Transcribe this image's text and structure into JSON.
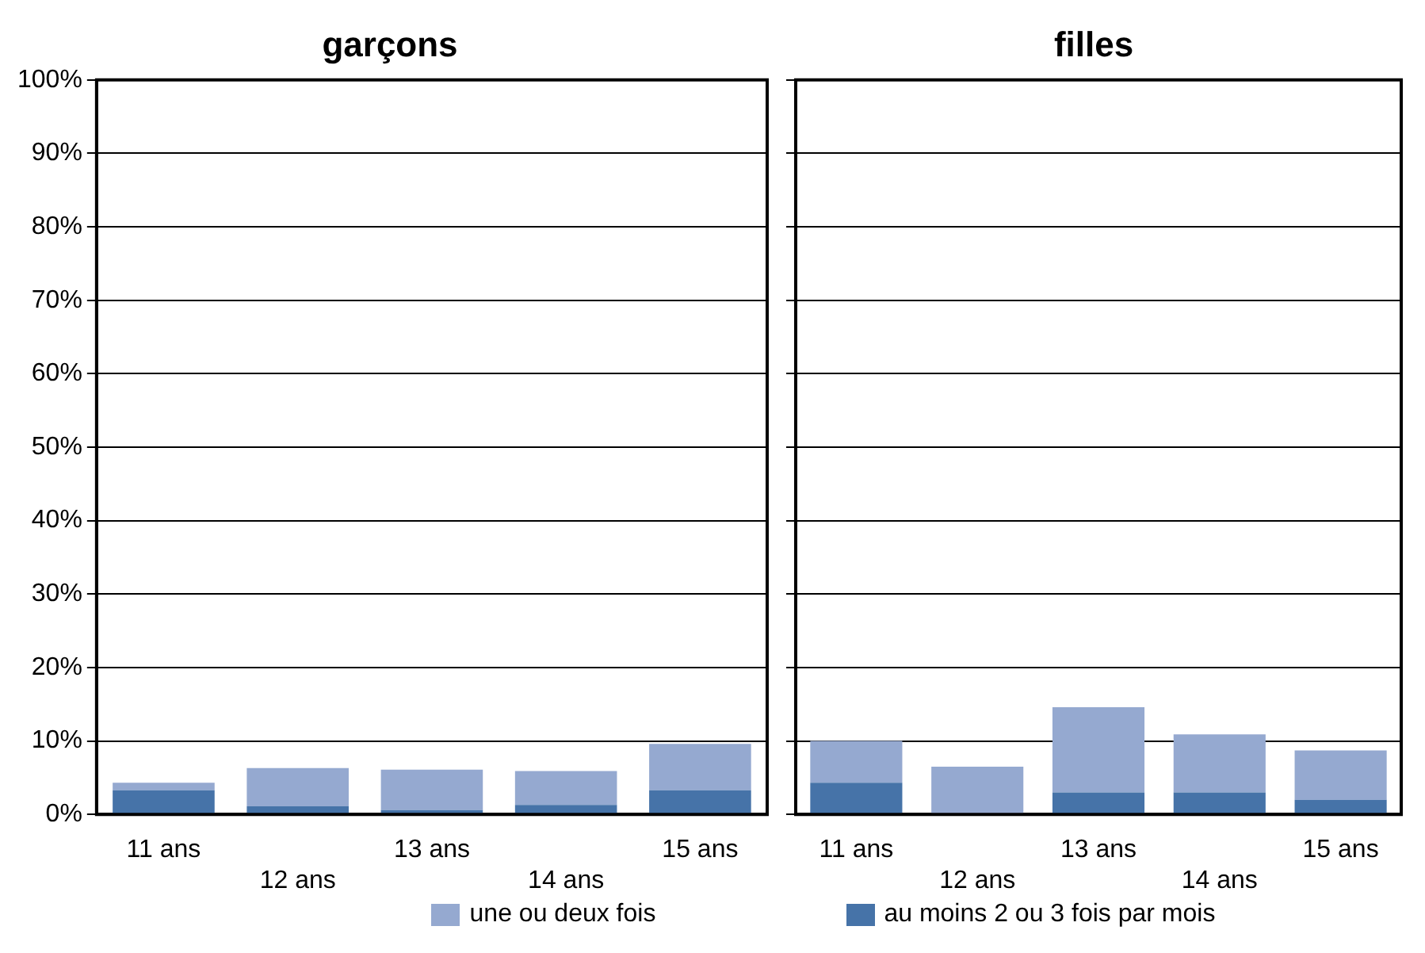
{
  "chart_data": [
    {
      "type": "bar",
      "title": "garçons",
      "categories": [
        "11 ans",
        "12 ans",
        "13 ans",
        "14 ans",
        "15 ans"
      ],
      "stacked": true,
      "series": [
        {
          "name": "au moins 2 ou 3 fois par mois",
          "color": "#4673a8",
          "values": [
            3.3,
            1.1,
            0.6,
            1.3,
            3.3
          ]
        },
        {
          "name": "une ou deux fois",
          "color": "#95a9d0",
          "values": [
            1.0,
            5.2,
            5.5,
            4.6,
            6.3
          ]
        }
      ],
      "ylim": [
        0,
        100
      ],
      "yticks": [
        {
          "value": 0,
          "label": "0%"
        },
        {
          "value": 10,
          "label": "10%"
        },
        {
          "value": 20,
          "label": "20%"
        },
        {
          "value": 30,
          "label": "30%"
        },
        {
          "value": 40,
          "label": "40%"
        },
        {
          "value": 50,
          "label": "50%"
        },
        {
          "value": 60,
          "label": "60%"
        },
        {
          "value": 70,
          "label": "70%"
        },
        {
          "value": 80,
          "label": "80%"
        },
        {
          "value": 90,
          "label": "90%"
        },
        {
          "value": 100,
          "label": "100%"
        }
      ],
      "grid": "y",
      "legend": "bottom"
    },
    {
      "type": "bar",
      "title": "filles",
      "categories": [
        "11 ans",
        "12 ans",
        "13 ans",
        "14 ans",
        "15 ans"
      ],
      "stacked": true,
      "series": [
        {
          "color": "#4673a8",
          "values": [
            4.3,
            0,
            3.0,
            3.0,
            2.0
          ]
        },
        {
          "color": "#95a9d0",
          "values": [
            5.7,
            6.5,
            11.6,
            7.9,
            6.7
          ]
        }
      ],
      "ylim": [
        0,
        100
      ],
      "yticks": [
        {
          "value": 0,
          "label": null
        },
        {
          "value": 10,
          "label": null
        },
        {
          "value": 20,
          "label": null
        },
        {
          "value": 30,
          "label": null
        },
        {
          "value": 40,
          "label": null
        },
        {
          "value": 50,
          "label": null
        },
        {
          "value": 60,
          "label": null
        },
        {
          "value": 70,
          "label": null
        },
        {
          "value": 80,
          "label": null
        },
        {
          "value": 90,
          "label": null
        },
        {
          "value": 100,
          "label": null
        }
      ],
      "grid": "y",
      "tick_labels": "x"
    }
  ]
}
